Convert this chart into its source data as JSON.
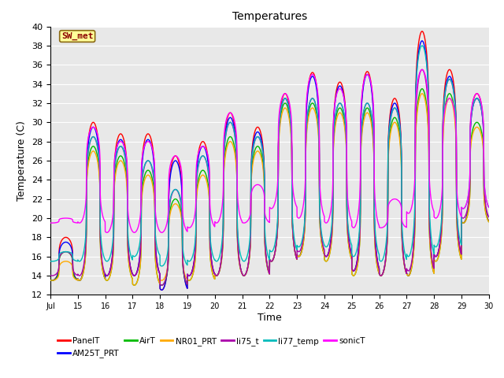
{
  "title": "Temperatures",
  "xlabel": "Time",
  "ylabel": "Temperature (C)",
  "ylim": [
    12,
    40
  ],
  "yticks": [
    12,
    14,
    16,
    18,
    20,
    22,
    24,
    26,
    28,
    30,
    32,
    34,
    36,
    38,
    40
  ],
  "x_start_day": 14,
  "x_end_day": 30,
  "xtick_positions": [
    14,
    15,
    16,
    17,
    18,
    19,
    20,
    21,
    22,
    23,
    24,
    25,
    26,
    27,
    28,
    29,
    30
  ],
  "xtick_labels": [
    "Jul",
    "15",
    "16",
    "17",
    "18",
    "19",
    "20",
    "21",
    "22",
    "23",
    "24",
    "25",
    "26",
    "27",
    "28",
    "29",
    "30"
  ],
  "series_names": [
    "PanelT",
    "AM25T_PRT",
    "AirT",
    "NR01_PRT",
    "li75_t",
    "li77_temp",
    "sonicT"
  ],
  "series_colors": {
    "PanelT": "#ff0000",
    "AM25T_PRT": "#0000ff",
    "AirT": "#00bb00",
    "NR01_PRT": "#ffaa00",
    "li75_t": "#aa00aa",
    "li77_temp": "#00bbbb",
    "sonicT": "#ff00ff"
  },
  "series_lw": {
    "PanelT": 1.0,
    "AM25T_PRT": 1.0,
    "AirT": 1.0,
    "NR01_PRT": 1.0,
    "li75_t": 1.0,
    "li77_temp": 1.0,
    "sonicT": 1.0
  },
  "annotation_text": "SW_met",
  "annotation_color": "#8B0000",
  "annotation_bg": "#ffff99",
  "annotation_border": "#8B6914",
  "background_color": "#e8e8e8",
  "grid_color": "#ffffff",
  "peak_hour": 13.5,
  "night_min_hour": 5.0,
  "sharpness": 3.5,
  "day_peaks": {
    "PanelT": [
      18.0,
      30.0,
      28.8,
      28.8,
      26.5,
      28.0,
      31.0,
      29.5,
      33.0,
      35.2,
      34.2,
      35.3,
      32.5,
      39.5,
      35.5,
      33.0
    ],
    "AM25T_PRT": [
      17.5,
      29.5,
      28.2,
      28.2,
      26.0,
      27.5,
      30.5,
      29.0,
      32.5,
      34.8,
      33.8,
      35.0,
      32.0,
      38.5,
      34.8,
      32.5
    ],
    "AirT": [
      16.5,
      27.5,
      26.5,
      25.0,
      22.0,
      25.0,
      28.5,
      27.5,
      32.0,
      32.0,
      31.5,
      31.5,
      30.5,
      33.5,
      33.0,
      30.0
    ],
    "NR01_PRT": [
      15.5,
      27.0,
      26.0,
      24.5,
      21.5,
      24.5,
      28.0,
      27.0,
      31.5,
      31.5,
      31.0,
      31.0,
      30.0,
      33.0,
      32.5,
      29.5
    ],
    "li75_t": [
      16.5,
      28.5,
      27.5,
      26.0,
      23.0,
      26.5,
      30.0,
      28.5,
      32.5,
      32.5,
      32.0,
      32.0,
      31.5,
      35.5,
      34.5,
      32.5
    ],
    "li77_temp": [
      16.5,
      28.5,
      27.5,
      26.0,
      23.0,
      26.5,
      30.0,
      28.5,
      32.5,
      32.5,
      32.0,
      32.0,
      31.5,
      38.0,
      34.5,
      32.5
    ],
    "sonicT": [
      20.0,
      29.5,
      28.0,
      28.0,
      26.5,
      27.5,
      31.0,
      23.5,
      33.0,
      35.0,
      33.5,
      35.0,
      22.0,
      35.5,
      32.5,
      33.0
    ]
  },
  "night_mins": {
    "PanelT": [
      13.5,
      13.5,
      14.0,
      14.0,
      12.5,
      14.0,
      14.0,
      14.0,
      15.5,
      16.0,
      16.0,
      14.5,
      14.0,
      14.0,
      16.0,
      19.5
    ],
    "AM25T_PRT": [
      13.5,
      13.5,
      14.0,
      14.0,
      12.5,
      14.0,
      14.0,
      14.0,
      15.5,
      16.0,
      16.0,
      14.5,
      14.0,
      14.0,
      16.0,
      19.5
    ],
    "AirT": [
      13.5,
      13.5,
      13.5,
      13.0,
      13.0,
      13.5,
      14.0,
      14.0,
      15.5,
      16.0,
      15.5,
      14.0,
      14.0,
      14.0,
      15.5,
      19.5
    ],
    "NR01_PRT": [
      13.5,
      13.5,
      13.5,
      13.0,
      13.5,
      13.5,
      14.0,
      14.0,
      15.5,
      16.0,
      15.5,
      14.0,
      14.0,
      14.0,
      15.5,
      19.5
    ],
    "li75_t": [
      14.0,
      14.0,
      14.0,
      14.0,
      13.0,
      14.0,
      14.0,
      14.0,
      15.5,
      16.5,
      16.0,
      14.5,
      14.0,
      14.5,
      16.0,
      20.0
    ],
    "li77_temp": [
      15.5,
      15.5,
      15.5,
      16.0,
      15.0,
      15.5,
      15.5,
      15.5,
      16.5,
      17.0,
      17.0,
      16.0,
      15.5,
      16.0,
      17.0,
      21.0
    ],
    "sonicT": [
      19.5,
      19.5,
      18.5,
      18.5,
      18.5,
      19.0,
      19.5,
      19.5,
      21.0,
      20.0,
      19.5,
      19.0,
      19.0,
      20.5,
      20.0,
      21.0
    ]
  }
}
